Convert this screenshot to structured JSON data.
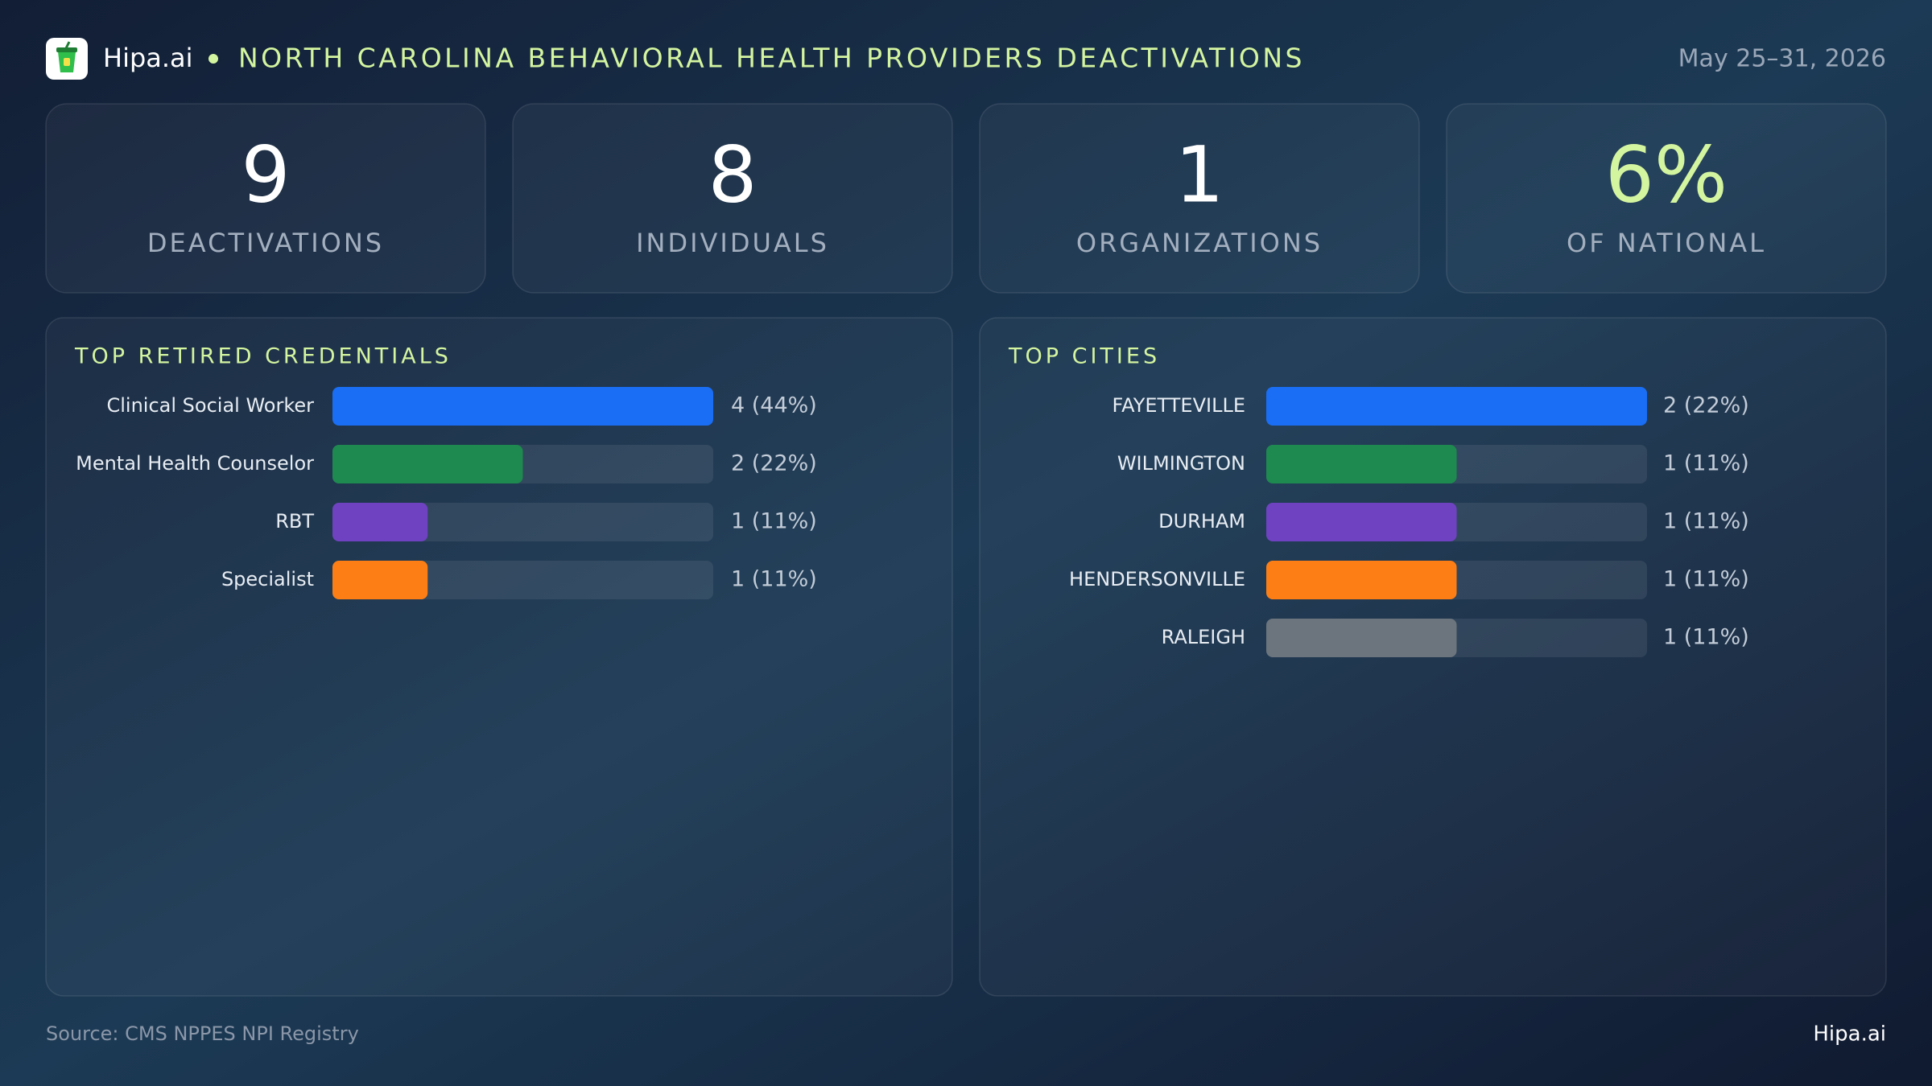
{
  "header": {
    "brand": "Hipa.ai",
    "title": "NORTH CAROLINA BEHAVIORAL HEALTH PROVIDERS DEACTIVATIONS",
    "date": "May 25–31, 2026"
  },
  "kpis": [
    {
      "value": 9,
      "label": "DEACTIVATIONS"
    },
    {
      "value": 8,
      "label": "INDIVIDUALS"
    },
    {
      "value": 1,
      "label": "ORGANIZATIONS"
    },
    {
      "value": "6%",
      "label": "OF NATIONAL",
      "color": "#d4f5a0"
    }
  ],
  "chart_data": [
    {
      "type": "bar",
      "orientation": "horizontal",
      "title": "TOP RETIRED CREDENTIALS",
      "categories": [
        "Clinical Social Worker",
        "Mental Health Counselor",
        "RBT",
        "Specialist"
      ],
      "values": [
        4,
        2,
        1,
        1
      ],
      "value_labels": [
        "4 (44%)",
        "2 (22%)",
        "1 (11%)",
        "1 (11%)"
      ],
      "colors": [
        "#1a6ef5",
        "#1e8a4f",
        "#6f42c1",
        "#fd7e14"
      ],
      "xlim": [
        0,
        4
      ]
    },
    {
      "type": "bar",
      "orientation": "horizontal",
      "title": "TOP CITIES",
      "categories": [
        "FAYETTEVILLE",
        "WILMINGTON",
        "DURHAM",
        "HENDERSONVILLE",
        "RALEIGH"
      ],
      "values": [
        2,
        1,
        1,
        1,
        1
      ],
      "value_labels": [
        "2 (22%)",
        "1 (11%)",
        "1 (11%)",
        "1 (11%)",
        "1 (11%)"
      ],
      "colors": [
        "#1a6ef5",
        "#1e8a4f",
        "#6f42c1",
        "#fd7e14",
        "#6c757d"
      ],
      "xlim": [
        0,
        2
      ]
    }
  ],
  "footer": {
    "source": "Source: CMS NPPES NPI Registry",
    "brand": "Hipa.ai"
  }
}
